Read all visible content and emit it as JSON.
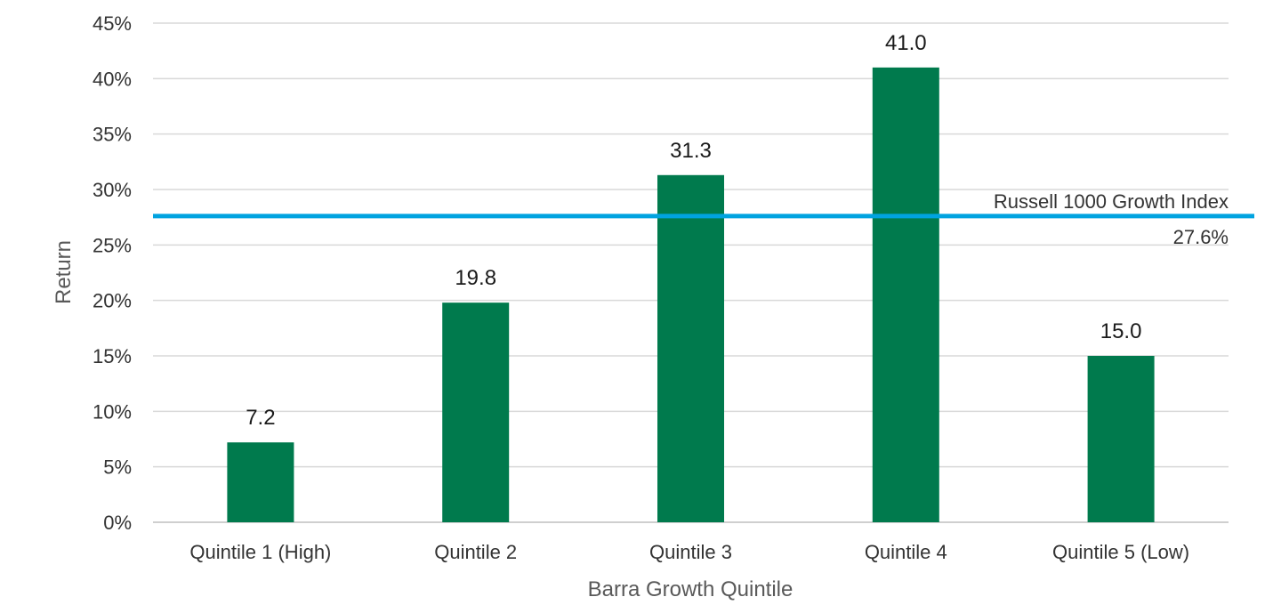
{
  "chart_data": {
    "type": "bar",
    "title": "",
    "xlabel": "Barra Growth Quintile",
    "ylabel": "Return",
    "categories": [
      "Quintile 1 (High)",
      "Quintile 2",
      "Quintile 3",
      "Quintile 4",
      "Quintile 5 (Low)"
    ],
    "values": [
      7.2,
      19.8,
      31.3,
      41.0,
      15.0
    ],
    "data_labels": [
      "7.2",
      "19.8",
      "31.3",
      "41.0",
      "15.0"
    ],
    "ylim": [
      0,
      45
    ],
    "yticks": [
      0,
      5,
      10,
      15,
      20,
      25,
      30,
      35,
      40,
      45
    ],
    "ytick_labels": [
      "0%",
      "5%",
      "10%",
      "15%",
      "20%",
      "25%",
      "30%",
      "35%",
      "40%",
      "45%"
    ],
    "grid": true,
    "bar_color": "#007a4d",
    "reference_line": {
      "name": "Russell 1000 Growth Index",
      "value": 27.6,
      "label": "27.6%",
      "color": "#00a3e0"
    }
  }
}
